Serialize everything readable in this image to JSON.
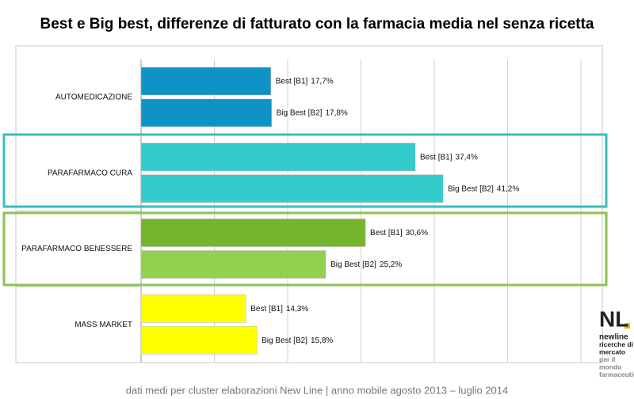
{
  "chart_data": {
    "type": "bar",
    "orientation": "horizontal",
    "title": "Best e Big best, differenze di fatturato con la farmacia media nel senza ricetta",
    "categories": [
      "AUTOMEDICAZIONE",
      "PARAFARMACO CURA",
      "PARAFARMACO BENESSERE",
      "MASS MARKET"
    ],
    "series": [
      {
        "name": "Best [B1]",
        "colors": [
          "#0f93c6",
          "#33cccc",
          "#74b52c",
          "#ffff00"
        ],
        "values": [
          17.7,
          37.4,
          30.6,
          14.3
        ],
        "value_labels": [
          "17,7%",
          "37,4%",
          "30,6%",
          "14,3%"
        ]
      },
      {
        "name": "Big Best [B2]",
        "colors": [
          "#0f93c6",
          "#33cccc",
          "#92d050",
          "#ffff00"
        ],
        "values": [
          17.8,
          41.2,
          25.2,
          15.8
        ],
        "value_labels": [
          "17,8%",
          "41,2%",
          "25,2%",
          "15,8%"
        ]
      }
    ],
    "xlim": [
      0,
      60
    ],
    "xticks": [
      0,
      10,
      20,
      30,
      40,
      50,
      60
    ],
    "grid": true,
    "footer": "dati medi per cluster elaborazioni New Line | anno mobile agosto 2013 – luglio 2014",
    "logo": {
      "mark": "NL",
      "lines": [
        "newline",
        "ricerche di",
        "mercato",
        "per il",
        "mondo",
        "farmaceutico"
      ]
    }
  }
}
